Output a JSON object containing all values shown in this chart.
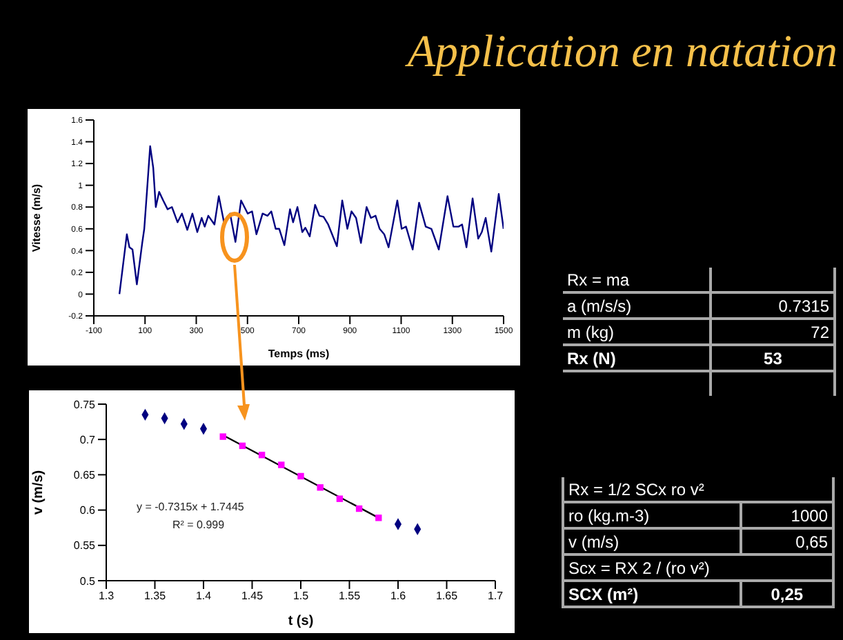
{
  "chart_data": [
    {
      "type": "line",
      "title": "Application en natation",
      "xlabel": "Temps (ms)",
      "ylabel": "Vitesse (m/s)",
      "xlim": [
        -100,
        1500
      ],
      "xticks": [
        -100,
        100,
        300,
        500,
        700,
        900,
        1100,
        1300,
        1500
      ],
      "ylim": [
        -0.2,
        1.6
      ],
      "yticks": [
        -0.2,
        0,
        0.2,
        0.4,
        0.6,
        0.8,
        1,
        1.2,
        1.4,
        1.6
      ],
      "grid": false,
      "legend": false,
      "marker": "none",
      "x": [
        0,
        29,
        39,
        51,
        68,
        89,
        97,
        108,
        120,
        132,
        142,
        155,
        171,
        188,
        205,
        227,
        244,
        265,
        285,
        304,
        321,
        333,
        347,
        371,
        388,
        410,
        432,
        453,
        475,
        501,
        518,
        535,
        559,
        578,
        593,
        610,
        624,
        644,
        666,
        678,
        695,
        714,
        726,
        743,
        764,
        781,
        797,
        815,
        849,
        870,
        890,
        906,
        924,
        943,
        965,
        982,
        1000,
        1016,
        1034,
        1051,
        1085,
        1102,
        1119,
        1145,
        1170,
        1196,
        1218,
        1247,
        1281,
        1304,
        1324,
        1338,
        1355,
        1379,
        1401,
        1415,
        1430,
        1452,
        1481,
        1500
      ],
      "series": [
        {
          "color": "#000080",
          "values": [
            0,
            0.55,
            0.43,
            0.41,
            0.09,
            0.47,
            0.6,
            0.96,
            1.36,
            1.16,
            0.8,
            0.94,
            0.86,
            0.78,
            0.8,
            0.66,
            0.74,
            0.59,
            0.74,
            0.57,
            0.7,
            0.62,
            0.72,
            0.64,
            0.9,
            0.64,
            0.74,
            0.48,
            0.86,
            0.74,
            0.76,
            0.55,
            0.74,
            0.72,
            0.76,
            0.6,
            0.6,
            0.45,
            0.78,
            0.66,
            0.8,
            0.57,
            0.61,
            0.53,
            0.82,
            0.72,
            0.71,
            0.64,
            0.44,
            0.86,
            0.6,
            0.76,
            0.7,
            0.47,
            0.8,
            0.7,
            0.72,
            0.6,
            0.55,
            0.43,
            0.86,
            0.6,
            0.62,
            0.41,
            0.84,
            0.62,
            0.6,
            0.41,
            0.9,
            0.62,
            0.62,
            0.64,
            0.43,
            0.88,
            0.51,
            0.57,
            0.7,
            0.39,
            0.92,
            0.6
          ]
        }
      ]
    },
    {
      "type": "scatter",
      "xlabel": "t (s)",
      "ylabel": "v (m/s)",
      "xlim": [
        1.3,
        1.7
      ],
      "xticks": [
        1.3,
        1.35,
        1.4,
        1.45,
        1.5,
        1.55,
        1.6,
        1.65,
        1.7
      ],
      "ylim": [
        0.5,
        0.75
      ],
      "yticks": [
        0.5,
        0.55,
        0.6,
        0.65,
        0.7,
        0.75
      ],
      "grid": false,
      "legend": false,
      "annotations": [
        "y = -0.7315x + 1.7445",
        "R² = 0.999"
      ],
      "series": [
        {
          "type": "scatter",
          "marker": "diamond",
          "color": "#000080",
          "x": [
            1.34,
            1.36,
            1.38,
            1.4,
            1.6,
            1.62
          ],
          "values": [
            0.735,
            0.73,
            0.722,
            0.715,
            0.58,
            0.573
          ]
        },
        {
          "type": "line",
          "marker": "none",
          "color": "#000000",
          "x": [
            1.42,
            1.58
          ],
          "values": [
            0.706,
            0.589
          ]
        },
        {
          "type": "scatter",
          "marker": "square",
          "color": "#ff00ff",
          "x": [
            1.42,
            1.44,
            1.46,
            1.48,
            1.5,
            1.52,
            1.54,
            1.56,
            1.58
          ],
          "values": [
            0.704,
            0.691,
            0.678,
            0.664,
            0.648,
            0.632,
            0.616,
            0.602,
            0.589
          ]
        }
      ]
    },
    {
      "type": "other",
      "title": "Rx = ma",
      "categories": [
        "a (m/s/s)",
        "m (kg)",
        "Rx (N)"
      ],
      "values": [
        0.7315,
        72,
        53
      ],
      "data_labels": true
    },
    {
      "type": "other",
      "title": "Rx = 1/2 SCx ro v²",
      "categories": [
        "ro (kg.m-3)",
        "v (m/s)",
        "Scx = RX 2 / (ro v²)",
        "SCX (m²)"
      ],
      "values": [
        1000,
        0.65,
        null,
        0.25
      ],
      "value_labels": [
        "1000",
        "0,65",
        null,
        "0,25"
      ]
    }
  ]
}
